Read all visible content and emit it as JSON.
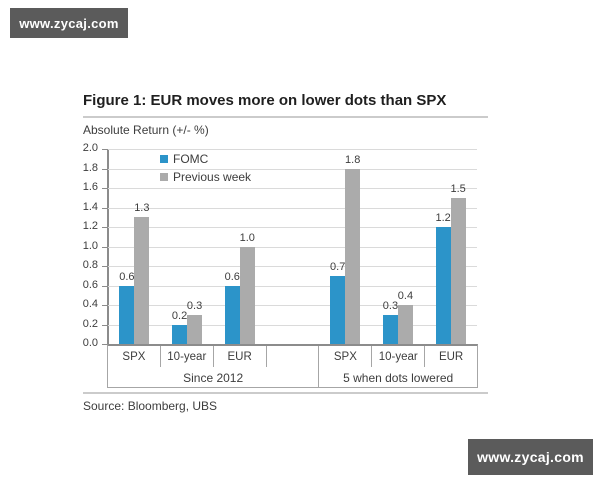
{
  "watermark": {
    "text": "www.zycaj.com",
    "bg_color": "#5b5b5b",
    "text_color": "#ffffff"
  },
  "figure": {
    "title": "Figure 1: EUR moves more on lower dots than SPX",
    "ylabel": "Absolute Return (+/- %)",
    "source": "Source: Bloomberg, UBS"
  },
  "chart_data": {
    "type": "bar",
    "title": "Figure 1: EUR moves more on lower dots than SPX",
    "ylabel": "Absolute Return (+/- %)",
    "ylim": [
      0,
      2.0
    ],
    "ytick_step": 0.2,
    "grid": true,
    "legend_position": "top-left-inside",
    "value_labels": true,
    "categories": [
      "SPX",
      "10-year",
      "EUR",
      "SPX",
      "10-year",
      "EUR"
    ],
    "groups": [
      {
        "label": "Since 2012",
        "category_indexes": [
          0,
          1,
          2
        ]
      },
      {
        "label": "5 when dots lowered",
        "category_indexes": [
          3,
          4,
          5
        ]
      }
    ],
    "series": [
      {
        "name": "FOMC",
        "color": "#2c94c9",
        "values": [
          0.6,
          0.2,
          0.6,
          0.7,
          0.3,
          1.2
        ]
      },
      {
        "name": "Previous week",
        "color": "#ababab",
        "values": [
          1.3,
          0.3,
          1.0,
          1.8,
          0.4,
          1.5
        ]
      }
    ],
    "source": "Source: Bloomberg, UBS"
  }
}
